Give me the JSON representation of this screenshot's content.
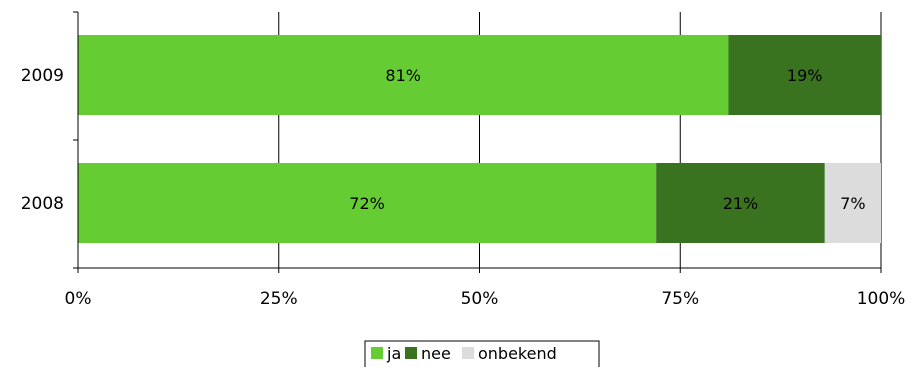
{
  "chart_data": {
    "type": "bar",
    "orientation": "horizontal",
    "stacked": "percent",
    "categories": [
      "2009",
      "2008"
    ],
    "series": [
      {
        "name": "ja",
        "color": "#66cc33",
        "values": [
          81,
          72
        ],
        "labels": [
          "81%",
          "72%"
        ]
      },
      {
        "name": "nee",
        "color": "#3a7320",
        "values": [
          19,
          21
        ],
        "labels": [
          "19%",
          "21%"
        ]
      },
      {
        "name": "onbekend",
        "color": "#dcdcdc",
        "values": [
          0,
          7
        ],
        "labels": [
          "",
          "7%"
        ]
      }
    ],
    "xlim": [
      0,
      100
    ],
    "xticks": [
      0,
      25,
      50,
      75,
      100
    ],
    "xtick_labels": [
      "0%",
      "25%",
      "50%",
      "75%",
      "100%"
    ],
    "grid": true,
    "legend_position": "bottom"
  }
}
